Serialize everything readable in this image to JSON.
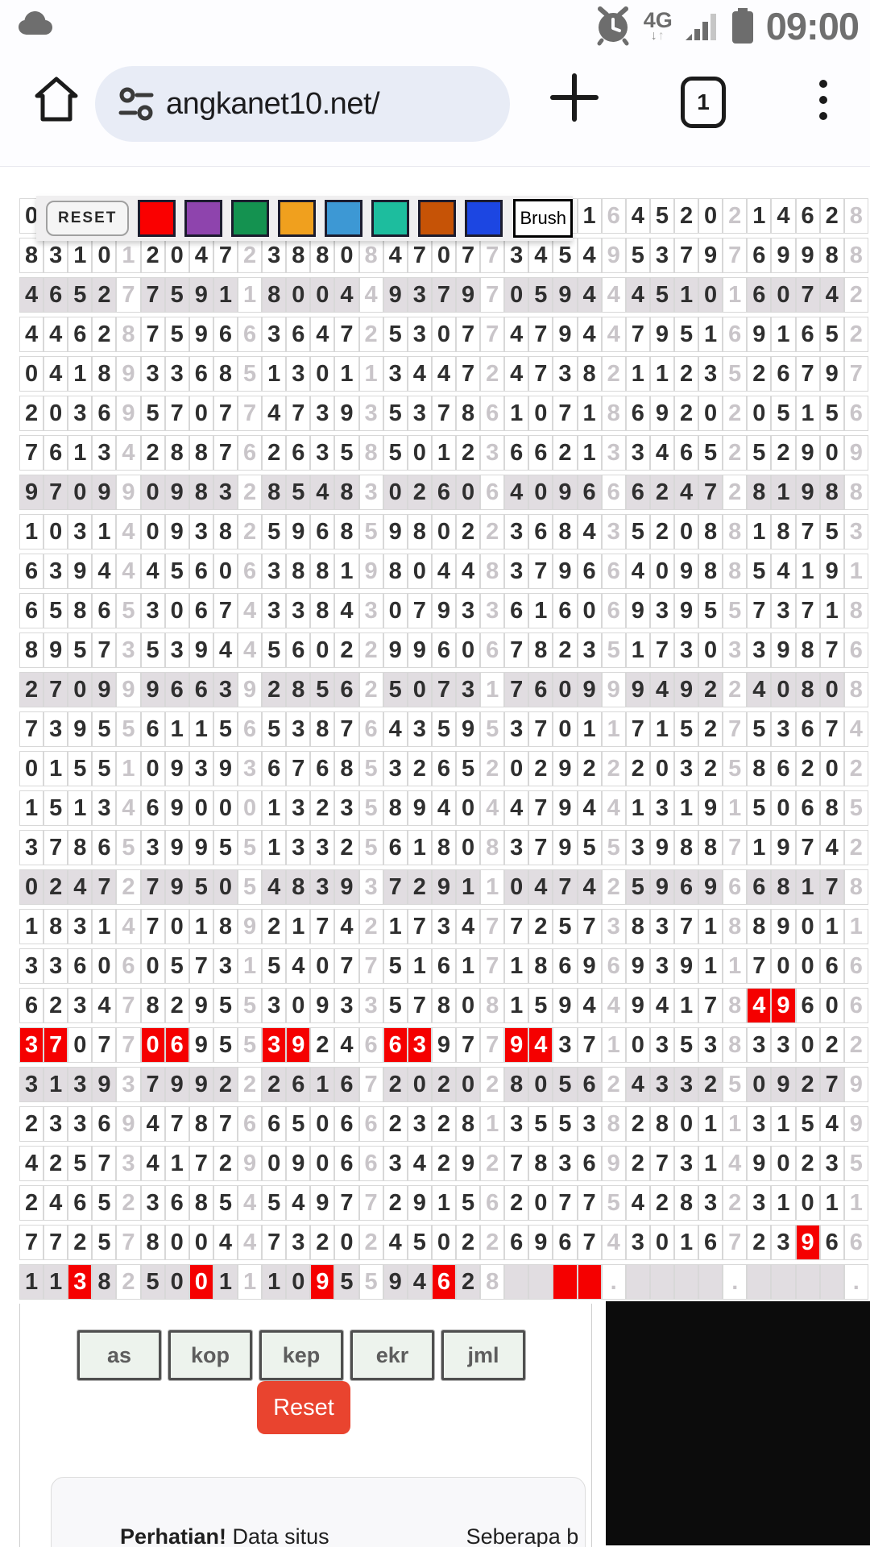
{
  "status_bar": {
    "time": "09:00",
    "network": "4G",
    "arrow_down": "↓",
    "arrow_up": "↑"
  },
  "browser": {
    "url": "angkanet10.net/",
    "tab_count": "1"
  },
  "toolbar": {
    "reset_label": "RESET",
    "brush_label": "Brush",
    "swatch_colors": [
      "#fa0000",
      "#8e44ad",
      "#149250",
      "#f0a01e",
      "#3d98d4",
      "#1dbd9e",
      "#c65306",
      "#1c46e2"
    ]
  },
  "colors": {
    "highlight_red": "#f50000",
    "stripe_row": "#e1dde1",
    "sep_digit": "#c9c5c9",
    "ad_panel": "#0c0c0c",
    "omnibox_bg": "#e8ecf6",
    "reset_button_red": "#e9442f"
  },
  "grid": {
    "rows": [
      {
        "stripe": false,
        "groups": [
          {
            "g": "0   ",
            "s": " "
          },
          {
            "g": "    ",
            "s": " "
          },
          {
            "g": "    ",
            "s": " "
          },
          {
            "g": "    ",
            "s": " "
          },
          {
            "g": "  01",
            "s": "6"
          },
          {
            "g": "4520",
            "s": "2"
          },
          {
            "g": "1462",
            "s": "8"
          }
        ]
      },
      {
        "stripe": false,
        "groups": [
          {
            "g": "8310",
            "s": "1"
          },
          {
            "g": "2047",
            "s": "2"
          },
          {
            "g": "3880",
            "s": "8"
          },
          {
            "g": "4707",
            "s": "7"
          },
          {
            "g": "3454",
            "s": "9"
          },
          {
            "g": "5379",
            "s": "7"
          },
          {
            "g": "6998",
            "s": "8"
          }
        ]
      },
      {
        "stripe": true,
        "groups": [
          {
            "g": "4652",
            "s": "7"
          },
          {
            "g": "7591",
            "s": "1"
          },
          {
            "g": "8004",
            "s": "4"
          },
          {
            "g": "9379",
            "s": "7"
          },
          {
            "g": "0594",
            "s": "4"
          },
          {
            "g": "4510",
            "s": "1"
          },
          {
            "g": "6074",
            "s": "2"
          }
        ]
      },
      {
        "stripe": false,
        "groups": [
          {
            "g": "4462",
            "s": "8"
          },
          {
            "g": "7596",
            "s": "6"
          },
          {
            "g": "3647",
            "s": "2"
          },
          {
            "g": "5307",
            "s": "7"
          },
          {
            "g": "4794",
            "s": "4"
          },
          {
            "g": "7951",
            "s": "6"
          },
          {
            "g": "9165",
            "s": "2"
          }
        ]
      },
      {
        "stripe": false,
        "groups": [
          {
            "g": "0418",
            "s": "9"
          },
          {
            "g": "3368",
            "s": "5"
          },
          {
            "g": "1301",
            "s": "1"
          },
          {
            "g": "3447",
            "s": "2"
          },
          {
            "g": "4738",
            "s": "2"
          },
          {
            "g": "1123",
            "s": "5"
          },
          {
            "g": "2679",
            "s": "7"
          }
        ]
      },
      {
        "stripe": false,
        "groups": [
          {
            "g": "2036",
            "s": "9"
          },
          {
            "g": "5707",
            "s": "7"
          },
          {
            "g": "4739",
            "s": "3"
          },
          {
            "g": "5378",
            "s": "6"
          },
          {
            "g": "1071",
            "s": "8"
          },
          {
            "g": "6920",
            "s": "2"
          },
          {
            "g": "0515",
            "s": "6"
          }
        ]
      },
      {
        "stripe": false,
        "groups": [
          {
            "g": "7613",
            "s": "4"
          },
          {
            "g": "2887",
            "s": "6"
          },
          {
            "g": "2635",
            "s": "8"
          },
          {
            "g": "5012",
            "s": "3"
          },
          {
            "g": "6621",
            "s": "3"
          },
          {
            "g": "3465",
            "s": "2"
          },
          {
            "g": "5290",
            "s": "9"
          }
        ]
      },
      {
        "stripe": true,
        "groups": [
          {
            "g": "9709",
            "s": "9"
          },
          {
            "g": "0983",
            "s": "2"
          },
          {
            "g": "8548",
            "s": "3"
          },
          {
            "g": "0260",
            "s": "6"
          },
          {
            "g": "4096",
            "s": "6"
          },
          {
            "g": "6247",
            "s": "2"
          },
          {
            "g": "8198",
            "s": "8"
          }
        ]
      },
      {
        "stripe": false,
        "groups": [
          {
            "g": "1031",
            "s": "4"
          },
          {
            "g": "0938",
            "s": "2"
          },
          {
            "g": "5968",
            "s": "5"
          },
          {
            "g": "9802",
            "s": "2"
          },
          {
            "g": "3684",
            "s": "3"
          },
          {
            "g": "5208",
            "s": "8"
          },
          {
            "g": "1875",
            "s": "3"
          }
        ]
      },
      {
        "stripe": false,
        "groups": [
          {
            "g": "6394",
            "s": "4"
          },
          {
            "g": "4560",
            "s": "6"
          },
          {
            "g": "3881",
            "s": "9"
          },
          {
            "g": "8044",
            "s": "8"
          },
          {
            "g": "3796",
            "s": "6"
          },
          {
            "g": "4098",
            "s": "8"
          },
          {
            "g": "5419",
            "s": "1"
          }
        ]
      },
      {
        "stripe": false,
        "groups": [
          {
            "g": "6586",
            "s": "5"
          },
          {
            "g": "3067",
            "s": "4"
          },
          {
            "g": "3384",
            "s": "3"
          },
          {
            "g": "0793",
            "s": "3"
          },
          {
            "g": "6160",
            "s": "6"
          },
          {
            "g": "9395",
            "s": "5"
          },
          {
            "g": "7371",
            "s": "8"
          }
        ]
      },
      {
        "stripe": false,
        "groups": [
          {
            "g": "8957",
            "s": "3"
          },
          {
            "g": "5394",
            "s": "4"
          },
          {
            "g": "5602",
            "s": "2"
          },
          {
            "g": "9960",
            "s": "6"
          },
          {
            "g": "7823",
            "s": "5"
          },
          {
            "g": "1730",
            "s": "3"
          },
          {
            "g": "3987",
            "s": "6"
          }
        ]
      },
      {
        "stripe": true,
        "groups": [
          {
            "g": "2709",
            "s": "9"
          },
          {
            "g": "9663",
            "s": "9"
          },
          {
            "g": "2856",
            "s": "2"
          },
          {
            "g": "5073",
            "s": "1"
          },
          {
            "g": "7609",
            "s": "9"
          },
          {
            "g": "9492",
            "s": "2"
          },
          {
            "g": "4080",
            "s": "8"
          }
        ]
      },
      {
        "stripe": false,
        "groups": [
          {
            "g": "7395",
            "s": "5"
          },
          {
            "g": "6115",
            "s": "6"
          },
          {
            "g": "5387",
            "s": "6"
          },
          {
            "g": "4359",
            "s": "5"
          },
          {
            "g": "3701",
            "s": "1"
          },
          {
            "g": "7152",
            "s": "7"
          },
          {
            "g": "5367",
            "s": "4"
          }
        ]
      },
      {
        "stripe": false,
        "groups": [
          {
            "g": "0155",
            "s": "1"
          },
          {
            "g": "0939",
            "s": "3"
          },
          {
            "g": "6768",
            "s": "5"
          },
          {
            "g": "3265",
            "s": "2"
          },
          {
            "g": "0292",
            "s": "2"
          },
          {
            "g": "2032",
            "s": "5"
          },
          {
            "g": "8620",
            "s": "2"
          }
        ]
      },
      {
        "stripe": false,
        "groups": [
          {
            "g": "1513",
            "s": "4"
          },
          {
            "g": "6900",
            "s": "0"
          },
          {
            "g": "1323",
            "s": "5"
          },
          {
            "g": "8940",
            "s": "4"
          },
          {
            "g": "4794",
            "s": "4"
          },
          {
            "g": "1319",
            "s": "1"
          },
          {
            "g": "5068",
            "s": "5"
          }
        ]
      },
      {
        "stripe": false,
        "groups": [
          {
            "g": "3786",
            "s": "5"
          },
          {
            "g": "3995",
            "s": "5"
          },
          {
            "g": "1332",
            "s": "5"
          },
          {
            "g": "6180",
            "s": "8"
          },
          {
            "g": "3795",
            "s": "5"
          },
          {
            "g": "3988",
            "s": "7"
          },
          {
            "g": "1974",
            "s": "2"
          }
        ]
      },
      {
        "stripe": true,
        "groups": [
          {
            "g": "0247",
            "s": "2"
          },
          {
            "g": "7950",
            "s": "5"
          },
          {
            "g": "4839",
            "s": "3"
          },
          {
            "g": "7291",
            "s": "1"
          },
          {
            "g": "0474",
            "s": "2"
          },
          {
            "g": "5969",
            "s": "6"
          },
          {
            "g": "6817",
            "s": "8"
          }
        ]
      },
      {
        "stripe": false,
        "groups": [
          {
            "g": "1831",
            "s": "4"
          },
          {
            "g": "7018",
            "s": "9"
          },
          {
            "g": "2174",
            "s": "2"
          },
          {
            "g": "1734",
            "s": "7"
          },
          {
            "g": "7257",
            "s": "3"
          },
          {
            "g": "8371",
            "s": "8"
          },
          {
            "g": "8901",
            "s": "1"
          }
        ]
      },
      {
        "stripe": false,
        "groups": [
          {
            "g": "3360",
            "s": "6"
          },
          {
            "g": "0573",
            "s": "1"
          },
          {
            "g": "5407",
            "s": "7"
          },
          {
            "g": "5161",
            "s": "7"
          },
          {
            "g": "1869",
            "s": "6"
          },
          {
            "g": "9391",
            "s": "1"
          },
          {
            "g": "7006",
            "s": "6"
          }
        ]
      },
      {
        "stripe": false,
        "groups": [
          {
            "g": "6234",
            "s": "7"
          },
          {
            "g": "8295",
            "s": "5"
          },
          {
            "g": "3093",
            "s": "3"
          },
          {
            "g": "5780",
            "s": "8"
          },
          {
            "g": "1594",
            "s": "4"
          },
          {
            "g": "9417",
            "s": "8"
          },
          {
            "g": "4960",
            "s": "6",
            "r": [
              0,
              1
            ]
          }
        ]
      },
      {
        "stripe": false,
        "groups": [
          {
            "g": "3707",
            "s": "7",
            "r": [
              0,
              1
            ]
          },
          {
            "g": "0695",
            "s": "5",
            "r": [
              0,
              1
            ]
          },
          {
            "g": "3924",
            "s": "6",
            "r": [
              0,
              1
            ]
          },
          {
            "g": "6397",
            "s": "7",
            "r": [
              0,
              1
            ]
          },
          {
            "g": "9437",
            "s": "1",
            "r": [
              0,
              1
            ]
          },
          {
            "g": "0353",
            "s": "8"
          },
          {
            "g": "3302",
            "s": "2"
          }
        ]
      },
      {
        "stripe": true,
        "groups": [
          {
            "g": "3139",
            "s": "3"
          },
          {
            "g": "7992",
            "s": "2"
          },
          {
            "g": "2616",
            "s": "7"
          },
          {
            "g": "2020",
            "s": "2"
          },
          {
            "g": "8056",
            "s": "2"
          },
          {
            "g": "4332",
            "s": "5"
          },
          {
            "g": "0927",
            "s": "9"
          }
        ]
      },
      {
        "stripe": false,
        "groups": [
          {
            "g": "2336",
            "s": "9"
          },
          {
            "g": "4787",
            "s": "6"
          },
          {
            "g": "6506",
            "s": "6"
          },
          {
            "g": "2328",
            "s": "1"
          },
          {
            "g": "3553",
            "s": "8"
          },
          {
            "g": "2801",
            "s": "1"
          },
          {
            "g": "3154",
            "s": "9"
          }
        ]
      },
      {
        "stripe": false,
        "groups": [
          {
            "g": "4257",
            "s": "3"
          },
          {
            "g": "4172",
            "s": "9"
          },
          {
            "g": "0906",
            "s": "6"
          },
          {
            "g": "3429",
            "s": "2"
          },
          {
            "g": "7836",
            "s": "9"
          },
          {
            "g": "2731",
            "s": "4"
          },
          {
            "g": "9023",
            "s": "5"
          }
        ]
      },
      {
        "stripe": false,
        "groups": [
          {
            "g": "2465",
            "s": "2"
          },
          {
            "g": "3685",
            "s": "4"
          },
          {
            "g": "5497",
            "s": "7"
          },
          {
            "g": "2915",
            "s": "6"
          },
          {
            "g": "2077",
            "s": "5"
          },
          {
            "g": "4283",
            "s": "2"
          },
          {
            "g": "3101",
            "s": "1"
          }
        ]
      },
      {
        "stripe": false,
        "groups": [
          {
            "g": "7725",
            "s": "7"
          },
          {
            "g": "8004",
            "s": "4"
          },
          {
            "g": "7320",
            "s": "2"
          },
          {
            "g": "4502",
            "s": "2"
          },
          {
            "g": "6967",
            "s": "4"
          },
          {
            "g": "3016",
            "s": "7"
          },
          {
            "g": "2396",
            "s": "6",
            "r": [
              2
            ]
          }
        ]
      },
      {
        "stripe": true,
        "groups": [
          {
            "g": "1138",
            "s": "2",
            "r": [
              2
            ]
          },
          {
            "g": "5001",
            "s": "1",
            "r": [
              2
            ]
          },
          {
            "g": "1095",
            "s": "5",
            "r": [
              2
            ]
          },
          {
            "g": "9462",
            "s": "8",
            "r": [
              2
            ]
          },
          {
            "g": "    ",
            "s": ".",
            "r": [
              2,
              3
            ]
          },
          {
            "g": "    ",
            "s": "."
          },
          {
            "g": "    ",
            "s": "."
          }
        ]
      }
    ]
  },
  "controls": {
    "filters": [
      "as",
      "kop",
      "kep",
      "ekr",
      "jml"
    ],
    "reset_label": "Reset"
  },
  "notice": {
    "bold": "Perhatian!",
    "text1": " Data situs",
    "text2": "Seberapa b"
  }
}
